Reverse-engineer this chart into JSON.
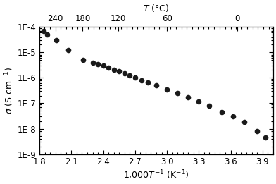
{
  "x_data": [
    1.84,
    1.87,
    1.96,
    2.07,
    2.21,
    2.3,
    2.35,
    2.4,
    2.45,
    2.5,
    2.55,
    2.6,
    2.65,
    2.7,
    2.76,
    2.82,
    2.9,
    3.0,
    3.1,
    3.2,
    3.3,
    3.4,
    3.52,
    3.62,
    3.73,
    3.85,
    3.93
  ],
  "y_data": [
    7e-05,
    5e-05,
    3e-05,
    1.2e-05,
    5e-06,
    4e-06,
    3.5e-06,
    3e-06,
    2.5e-06,
    2e-06,
    1.8e-06,
    1.5e-06,
    1.2e-06,
    1e-06,
    8e-07,
    6.5e-07,
    5e-07,
    3.5e-07,
    2.5e-07,
    1.7e-07,
    1.2e-07,
    8e-08,
    4.5e-08,
    3e-08,
    1.8e-08,
    8e-09,
    4.5e-09
  ],
  "xlim": [
    1.8,
    4.0
  ],
  "ylim": [
    1e-09,
    0.0001
  ],
  "bottom_xticks": [
    1.8,
    2.1,
    2.4,
    2.7,
    3.0,
    3.3,
    3.6,
    3.9
  ],
  "yticks_exp": [
    -9,
    -8,
    -7,
    -6,
    -5,
    -4
  ],
  "top_xticks_celsius": [
    240,
    180,
    120,
    60,
    0
  ],
  "marker_color": "#1a1a1a",
  "marker_size": 5.5,
  "bg_color": "#ffffff",
  "tick_fontsize": 8.5,
  "label_fontsize": 9
}
